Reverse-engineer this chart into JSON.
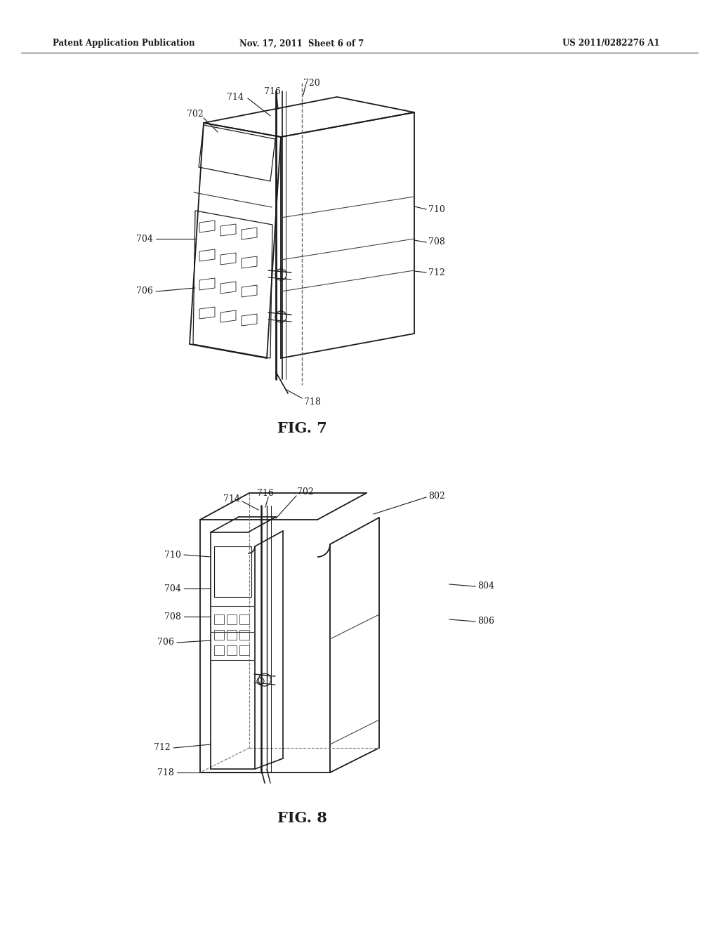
{
  "bg_color": "#ffffff",
  "header_text": "Patent Application Publication",
  "header_date": "Nov. 17, 2011  Sheet 6 of 7",
  "header_patent": "US 2011/0282276 A1",
  "fig7_label": "FIG. 7",
  "fig8_label": "FIG. 8",
  "line_color": "#1a1a1a",
  "text_color": "#1a1a1a",
  "gray_color": "#555555"
}
